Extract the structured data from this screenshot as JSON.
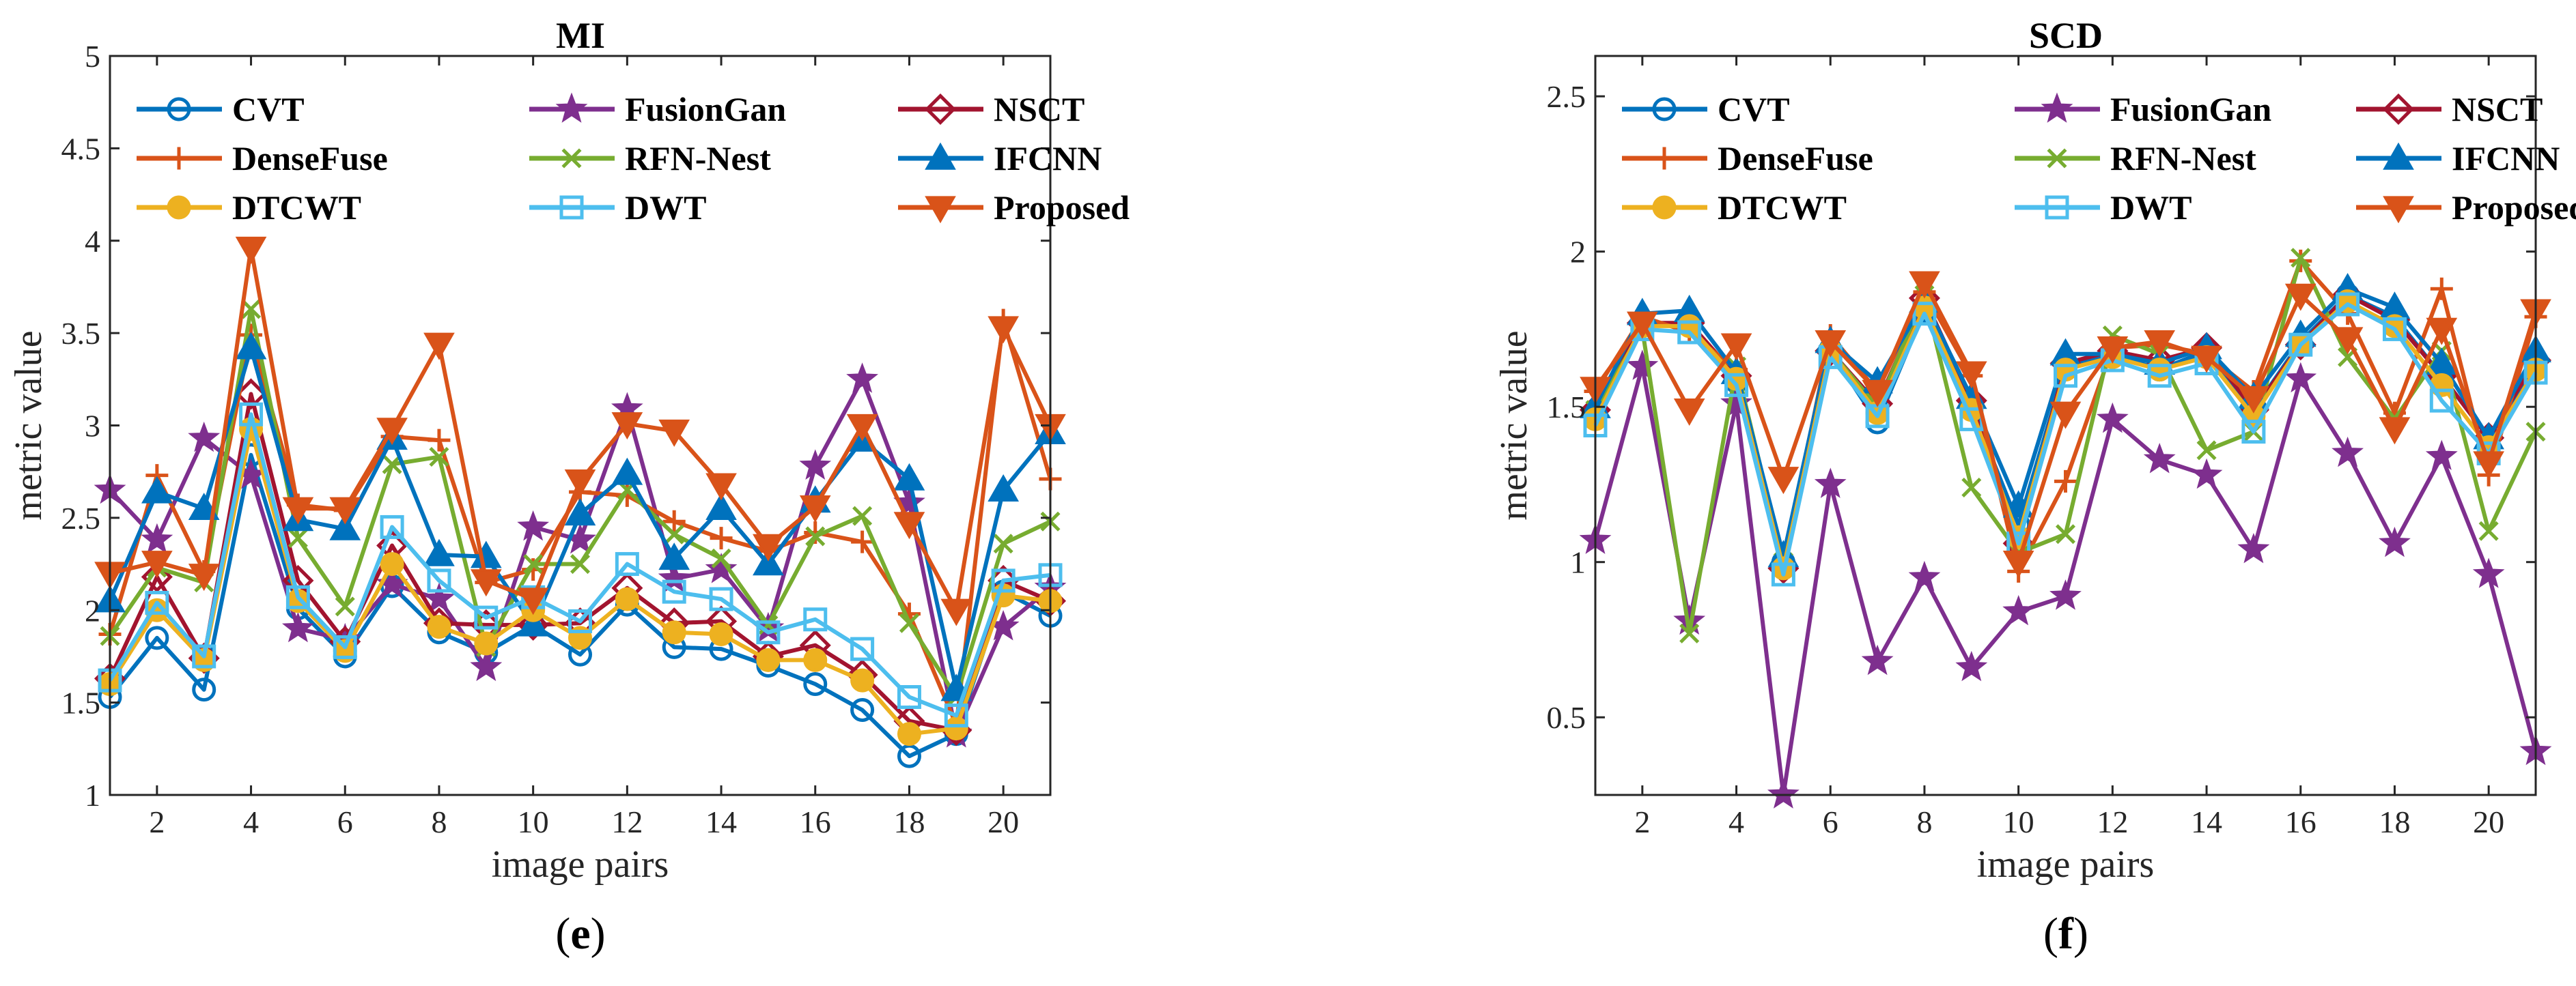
{
  "chart_data": [
    {
      "type": "line",
      "title": "MI",
      "xlabel": "image pairs",
      "ylabel": "metric value",
      "caption": "(e)",
      "caption_letter": "e",
      "xlim": [
        1,
        21
      ],
      "ylim": [
        1,
        5
      ],
      "xticks": [
        2,
        4,
        6,
        8,
        10,
        12,
        14,
        16,
        18,
        20
      ],
      "yticks": [
        1,
        1.5,
        2,
        2.5,
        3,
        3.5,
        4,
        4.5,
        5
      ],
      "ytick_labels": [
        "1",
        "1.5",
        "2",
        "2.5",
        "3",
        "3.5",
        "4",
        "4.5",
        "5"
      ],
      "x": [
        1,
        2,
        3,
        4,
        5,
        6,
        7,
        8,
        9,
        10,
        11,
        12,
        13,
        14,
        15,
        16,
        17,
        18,
        19,
        20,
        21
      ],
      "series": [
        {
          "name": "CVT",
          "color": "#0072BD",
          "marker": "circle",
          "values": [
            1.53,
            1.85,
            1.57,
            2.84,
            2.01,
            1.75,
            2.13,
            1.88,
            1.77,
            1.92,
            1.76,
            2.03,
            1.8,
            1.79,
            1.7,
            1.6,
            1.46,
            1.21,
            1.33,
            2.1,
            1.97
          ]
        },
        {
          "name": "FusionGan",
          "color": "#7E2F8E",
          "marker": "star",
          "values": [
            2.65,
            2.38,
            2.93,
            2.73,
            1.9,
            1.84,
            2.14,
            2.06,
            1.69,
            2.45,
            2.38,
            3.09,
            2.17,
            2.22,
            1.9,
            2.78,
            3.25,
            2.58,
            1.33,
            1.91,
            2.12
          ]
        },
        {
          "name": "NSCT",
          "color": "#A2142F",
          "marker": "diamond",
          "values": [
            1.63,
            2.18,
            1.74,
            3.17,
            2.16,
            1.83,
            2.35,
            1.93,
            1.92,
            1.92,
            1.93,
            2.12,
            1.93,
            1.94,
            1.75,
            1.81,
            1.65,
            1.4,
            1.35,
            2.16,
            2.05
          ]
        },
        {
          "name": "DenseFuse",
          "color": "#D95319",
          "marker": "plus",
          "values": [
            1.87,
            2.73,
            2.21,
            3.49,
            2.57,
            2.54,
            2.94,
            2.92,
            2.15,
            2.22,
            2.64,
            2.62,
            2.48,
            2.39,
            2.32,
            2.42,
            2.37,
            1.98,
            1.38,
            3.57,
            2.71
          ]
        },
        {
          "name": "RFN-Nest",
          "color": "#77AC30",
          "marker": "x",
          "values": [
            1.86,
            2.23,
            2.15,
            3.63,
            2.39,
            2.02,
            2.79,
            2.83,
            1.8,
            2.25,
            2.25,
            2.65,
            2.41,
            2.28,
            1.92,
            2.4,
            2.51,
            1.93,
            1.53,
            2.36,
            2.48
          ]
        },
        {
          "name": "IFCNN",
          "color": "#0072BD",
          "marker": "triangle-up",
          "values": [
            2.05,
            2.64,
            2.55,
            3.42,
            2.49,
            2.44,
            2.93,
            2.3,
            2.29,
            1.92,
            2.52,
            2.74,
            2.28,
            2.55,
            2.25,
            2.59,
            2.92,
            2.71,
            1.57,
            2.65,
            2.96
          ]
        },
        {
          "name": "DTCWT",
          "color": "#EDB120",
          "marker": "circle-filled",
          "values": [
            1.6,
            2.0,
            1.73,
            2.98,
            2.05,
            1.78,
            2.25,
            1.91,
            1.82,
            2.0,
            1.85,
            2.06,
            1.88,
            1.87,
            1.73,
            1.73,
            1.62,
            1.33,
            1.36,
            2.08,
            2.05
          ]
        },
        {
          "name": "DWT",
          "color": "#4DBEEE",
          "marker": "square",
          "values": [
            1.62,
            2.04,
            1.75,
            3.06,
            2.07,
            1.8,
            2.45,
            2.16,
            1.96,
            2.07,
            1.94,
            2.25,
            2.1,
            2.06,
            1.88,
            1.95,
            1.79,
            1.53,
            1.43,
            2.16,
            2.19
          ]
        },
        {
          "name": "Proposed",
          "color": "#D95319",
          "marker": "triangle-down",
          "values": [
            2.2,
            2.26,
            2.19,
            3.96,
            2.55,
            2.55,
            2.98,
            3.44,
            2.16,
            2.06,
            2.7,
            3.01,
            2.97,
            2.68,
            2.35,
            2.56,
            3.0,
            2.47,
            2.0,
            3.53,
            3.0
          ]
        }
      ]
    },
    {
      "type": "line",
      "title": "SCD",
      "xlabel": "image pairs",
      "ylabel": "metric value",
      "caption": "(f)",
      "caption_letter": "f",
      "xlim": [
        1,
        21
      ],
      "ylim": [
        0.25,
        2.63
      ],
      "xticks": [
        2,
        4,
        6,
        8,
        10,
        12,
        14,
        16,
        18,
        20
      ],
      "yticks": [
        0.5,
        1,
        1.5,
        2,
        2.5
      ],
      "ytick_labels": [
        "0.5",
        "1",
        "1.5",
        "2",
        "2.5"
      ],
      "x": [
        1,
        2,
        3,
        4,
        5,
        6,
        7,
        8,
        9,
        10,
        11,
        12,
        13,
        14,
        15,
        16,
        17,
        18,
        19,
        20,
        21
      ],
      "series": [
        {
          "name": "CVT",
          "color": "#0072BD",
          "marker": "circle",
          "values": [
            1.47,
            1.76,
            1.77,
            1.58,
            1.0,
            1.68,
            1.45,
            1.81,
            1.5,
            1.12,
            1.63,
            1.67,
            1.62,
            1.68,
            1.49,
            1.71,
            1.86,
            1.79,
            1.6,
            1.4,
            1.64
          ]
        },
        {
          "name": "FusionGan",
          "color": "#7E2F8E",
          "marker": "star",
          "values": [
            1.07,
            1.63,
            0.81,
            1.51,
            0.25,
            1.25,
            0.68,
            0.95,
            0.66,
            0.84,
            0.89,
            1.46,
            1.33,
            1.28,
            1.04,
            1.59,
            1.35,
            1.06,
            1.34,
            0.96,
            0.39
          ]
        },
        {
          "name": "NSCT",
          "color": "#A2142F",
          "marker": "diamond",
          "values": [
            1.49,
            1.77,
            1.77,
            1.6,
            0.98,
            1.68,
            1.51,
            1.85,
            1.52,
            1.06,
            1.64,
            1.68,
            1.65,
            1.69,
            1.49,
            1.7,
            1.86,
            1.78,
            1.6,
            1.4,
            1.65
          ]
        },
        {
          "name": "DenseFuse",
          "color": "#D95319",
          "marker": "plus",
          "values": [
            1.55,
            1.79,
            1.74,
            1.62,
            0.99,
            1.73,
            1.55,
            1.87,
            1.6,
            0.97,
            1.26,
            1.69,
            1.7,
            1.67,
            1.55,
            1.97,
            1.8,
            1.48,
            1.88,
            1.28,
            1.79
          ]
        },
        {
          "name": "RFN-Nest",
          "color": "#77AC30",
          "marker": "x",
          "values": [
            1.49,
            1.75,
            0.77,
            1.63,
            1.0,
            1.68,
            1.5,
            1.86,
            1.24,
            1.03,
            1.09,
            1.73,
            1.67,
            1.36,
            1.42,
            1.98,
            1.66,
            1.46,
            1.68,
            1.1,
            1.42
          ]
        },
        {
          "name": "IFCNN",
          "color": "#0072BD",
          "marker": "triangle-up",
          "values": [
            1.5,
            1.8,
            1.81,
            1.61,
            1.02,
            1.71,
            1.58,
            1.84,
            1.53,
            1.18,
            1.67,
            1.67,
            1.64,
            1.69,
            1.53,
            1.73,
            1.88,
            1.82,
            1.64,
            1.4,
            1.68
          ]
        },
        {
          "name": "DTCWT",
          "color": "#EDB120",
          "marker": "circle-filled",
          "values": [
            1.46,
            1.76,
            1.76,
            1.59,
            0.98,
            1.68,
            1.48,
            1.82,
            1.49,
            1.08,
            1.62,
            1.66,
            1.62,
            1.66,
            1.47,
            1.7,
            1.84,
            1.76,
            1.57,
            1.37,
            1.62
          ]
        },
        {
          "name": "DWT",
          "color": "#4DBEEE",
          "marker": "square",
          "values": [
            1.44,
            1.75,
            1.74,
            1.57,
            0.96,
            1.66,
            1.47,
            1.8,
            1.46,
            1.06,
            1.6,
            1.65,
            1.6,
            1.64,
            1.42,
            1.7,
            1.83,
            1.75,
            1.52,
            1.35,
            1.61
          ]
        },
        {
          "name": "Proposed",
          "color": "#D95319",
          "marker": "triangle-down",
          "values": [
            1.56,
            1.77,
            1.49,
            1.7,
            1.27,
            1.71,
            1.55,
            1.9,
            1.61,
            1.0,
            1.48,
            1.69,
            1.71,
            1.66,
            1.53,
            1.86,
            1.72,
            1.43,
            1.75,
            1.32,
            1.81
          ]
        }
      ]
    }
  ]
}
